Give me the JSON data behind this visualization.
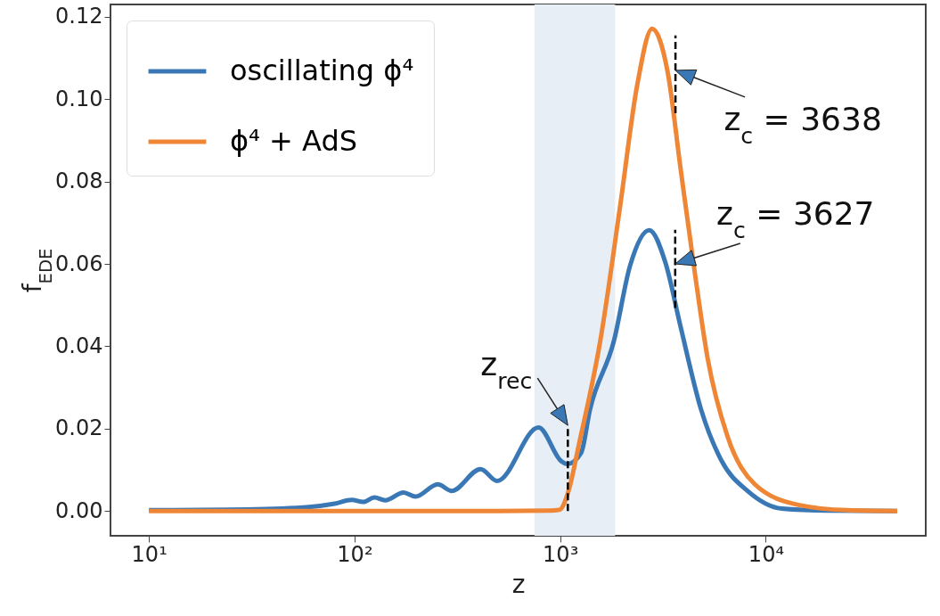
{
  "chart_data": {
    "type": "line",
    "xlabel": "z",
    "ylabel": "f$_{EDE}$",
    "log": "x",
    "legend": "top left",
    "grid": false,
    "xlim": [
      6.5,
      60000
    ],
    "ylim": [
      -0.006,
      0.123
    ],
    "xticks": [
      {
        "value": 10,
        "label": "10¹"
      },
      {
        "value": 100,
        "label": "10²"
      },
      {
        "value": 1000,
        "label": "10³"
      },
      {
        "value": 10000,
        "label": "10⁴"
      }
    ],
    "yticks": [
      {
        "value": 0,
        "label": "0.00"
      },
      {
        "value": 0.02,
        "label": "0.02"
      },
      {
        "value": 0.04,
        "label": "0.04"
      },
      {
        "value": 0.06,
        "label": "0.06"
      },
      {
        "value": 0.08,
        "label": "0.08"
      },
      {
        "value": 0.1,
        "label": "0.10"
      },
      {
        "value": 0.12,
        "label": "0.12"
      }
    ],
    "series": [
      {
        "name": "oscillating ϕ⁴",
        "color": "#3a78b5",
        "x": [
          10,
          30,
          60,
          80,
          97,
          110,
          125,
          141,
          173,
          198,
          254,
          297,
          410,
          494,
          785,
          1013,
          1082,
          1264,
          1396,
          1826,
          2186,
          2712,
          3252,
          3863,
          4850,
          6080,
          8200,
          11950,
          20000,
          43600
        ],
        "values": [
          0.0002,
          0.0004,
          0.001,
          0.0018,
          0.0027,
          0.0022,
          0.0033,
          0.0026,
          0.0045,
          0.0035,
          0.0065,
          0.0049,
          0.0102,
          0.0073,
          0.0203,
          0.0121,
          0.0114,
          0.0141,
          0.0246,
          0.0413,
          0.0595,
          0.0682,
          0.0603,
          0.0445,
          0.0246,
          0.0123,
          0.0048,
          0.0006,
          0.0001,
          0
        ]
      },
      {
        "name": "ϕ⁴ + AdS",
        "color": "#ef8636",
        "x": [
          10,
          100,
          500,
          900,
          992,
          1100,
          1237,
          1567,
          1962,
          2370,
          2800,
          3330,
          3863,
          4520,
          5210,
          6510,
          8850,
          14400,
          25000,
          43600
        ],
        "values": [
          0,
          0,
          0,
          0.0001,
          0.0003,
          0.005,
          0.0164,
          0.0413,
          0.0744,
          0.1034,
          0.1171,
          0.1067,
          0.0827,
          0.0578,
          0.0372,
          0.0182,
          0.0065,
          0.0015,
          0.0002,
          0
        ]
      },
      {
        "type": "line",
        "line_style": "dashed",
        "color": "#000000",
        "x": [
          1090,
          1090
        ],
        "values": [
          0,
          0.0208
        ]
      },
      {
        "type": "line",
        "line_style": "dashed",
        "color": "#000000",
        "x": [
          3638,
          3638
        ],
        "values": [
          0.0966,
          0.1155
        ]
      },
      {
        "type": "line",
        "line_style": "dashed",
        "color": "#000000",
        "x": [
          3627,
          3627
        ],
        "values": [
          0.0493,
          0.0683
        ]
      }
    ],
    "bands": [
      {
        "axis": "x",
        "from": 750,
        "to": 1850,
        "color": "#e8eef6"
      }
    ],
    "annotations": [
      {
        "text": "z$_{rec}$",
        "x": 1090,
        "y": 0.0208
      },
      {
        "text": "z$_{c}$ = 3638",
        "x": 3638,
        "y": 0.107
      },
      {
        "text": "z$_{c}$ = 3627",
        "x": 3627,
        "y": 0.06
      }
    ]
  }
}
